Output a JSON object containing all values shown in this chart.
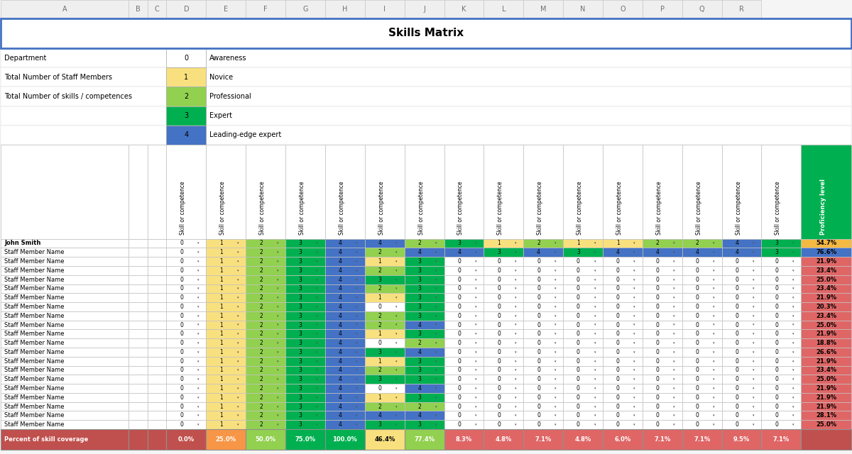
{
  "title": "Skills Matrix",
  "col_letters": [
    "A",
    "B",
    "C",
    "D",
    "E",
    "F",
    "G",
    "H",
    "I",
    "J",
    "K",
    "L",
    "M",
    "N",
    "O",
    "P",
    "Q",
    "R"
  ],
  "legend_items": [
    {
      "value": 0,
      "label": "Awareness",
      "color": "#FFFFFF"
    },
    {
      "value": 1,
      "label": "Novice",
      "color": "#F9E07F"
    },
    {
      "value": 2,
      "label": "Professional",
      "color": "#92D050"
    },
    {
      "value": 3,
      "label": "Expert",
      "color": "#00B050"
    },
    {
      "value": 4,
      "label": "Leading-edge expert",
      "color": "#4472C4"
    }
  ],
  "info_labels": [
    "Department",
    "Total Number of Staff Members",
    "Total Number of skills / competences"
  ],
  "header_text": "Skill or competence",
  "last_col_header": "Proficiency level",
  "num_skill_cols": 16,
  "row_names": [
    "John Smith",
    "Staff Member Name",
    "Staff Member Name",
    "Staff Member Name",
    "Staff Member Name",
    "Staff Member Name",
    "Staff Member Name",
    "Staff Member Name",
    "Staff Member Name",
    "Staff Member Name",
    "Staff Member Name",
    "Staff Member Name",
    "Staff Member Name",
    "Staff Member Name",
    "Staff Member Name",
    "Staff Member Name",
    "Staff Member Name",
    "Staff Member Name",
    "Staff Member Name",
    "Staff Member Name",
    "Staff Member Name"
  ],
  "cell_values": [
    [
      0,
      1,
      2,
      3,
      4,
      4,
      2,
      3,
      1,
      2,
      1,
      1,
      2,
      2,
      4,
      3
    ],
    [
      0,
      1,
      2,
      3,
      4,
      2,
      4,
      4,
      3,
      4,
      3,
      4,
      4,
      4,
      4,
      3
    ],
    [
      0,
      1,
      2,
      3,
      4,
      1,
      3,
      0,
      0,
      0,
      0,
      0,
      0,
      0,
      0,
      0
    ],
    [
      0,
      1,
      2,
      3,
      4,
      2,
      3,
      0,
      0,
      0,
      0,
      0,
      0,
      0,
      0,
      0
    ],
    [
      0,
      1,
      2,
      3,
      4,
      3,
      3,
      0,
      0,
      0,
      0,
      0,
      0,
      0,
      0,
      0
    ],
    [
      0,
      1,
      2,
      3,
      4,
      2,
      3,
      0,
      0,
      0,
      0,
      0,
      0,
      0,
      0,
      0
    ],
    [
      0,
      1,
      2,
      3,
      4,
      1,
      3,
      0,
      0,
      0,
      0,
      0,
      0,
      0,
      0,
      0
    ],
    [
      0,
      1,
      2,
      3,
      4,
      0,
      3,
      0,
      0,
      0,
      0,
      0,
      0,
      0,
      0,
      0
    ],
    [
      0,
      1,
      2,
      3,
      4,
      2,
      3,
      0,
      0,
      0,
      0,
      0,
      0,
      0,
      0,
      0
    ],
    [
      0,
      1,
      2,
      3,
      4,
      2,
      4,
      0,
      0,
      0,
      0,
      0,
      0,
      0,
      0,
      0
    ],
    [
      0,
      1,
      2,
      3,
      4,
      1,
      3,
      0,
      0,
      0,
      0,
      0,
      0,
      0,
      0,
      0
    ],
    [
      0,
      1,
      2,
      3,
      4,
      0,
      2,
      0,
      0,
      0,
      0,
      0,
      0,
      0,
      0,
      0
    ],
    [
      0,
      1,
      2,
      3,
      4,
      3,
      4,
      0,
      0,
      0,
      0,
      0,
      0,
      0,
      0,
      0
    ],
    [
      0,
      1,
      2,
      3,
      4,
      1,
      3,
      0,
      0,
      0,
      0,
      0,
      0,
      0,
      0,
      0
    ],
    [
      0,
      1,
      2,
      3,
      4,
      2,
      3,
      0,
      0,
      0,
      0,
      0,
      0,
      0,
      0,
      0
    ],
    [
      0,
      1,
      2,
      3,
      4,
      3,
      3,
      0,
      0,
      0,
      0,
      0,
      0,
      0,
      0,
      0
    ],
    [
      0,
      1,
      2,
      3,
      4,
      0,
      4,
      0,
      0,
      0,
      0,
      0,
      0,
      0,
      0,
      0
    ],
    [
      0,
      1,
      2,
      3,
      4,
      1,
      3,
      0,
      0,
      0,
      0,
      0,
      0,
      0,
      0,
      0
    ],
    [
      0,
      1,
      2,
      3,
      4,
      2,
      2,
      0,
      0,
      0,
      0,
      0,
      0,
      0,
      0,
      0
    ],
    [
      0,
      1,
      2,
      3,
      4,
      4,
      4,
      0,
      0,
      0,
      0,
      0,
      0,
      0,
      0,
      0
    ],
    [
      0,
      1,
      2,
      3,
      4,
      3,
      3,
      0,
      0,
      0,
      0,
      0,
      0,
      0,
      0,
      0
    ]
  ],
  "proficiency_values": [
    "54.7%",
    "76.6%",
    "21.9%",
    "23.4%",
    "25.0%",
    "23.4%",
    "21.9%",
    "20.3%",
    "23.4%",
    "25.0%",
    "21.9%",
    "18.8%",
    "26.6%",
    "21.9%",
    "23.4%",
    "25.0%",
    "21.9%",
    "21.9%",
    "21.9%",
    "28.1%",
    "25.0%"
  ],
  "coverage_values": [
    "0.0%",
    "25.0%",
    "50.0%",
    "75.0%",
    "100.0%",
    "46.4%",
    "77.4%",
    "8.3%",
    "4.8%",
    "7.1%",
    "4.8%",
    "6.0%",
    "7.1%",
    "7.1%",
    "9.5%",
    "7.1%"
  ],
  "coverage_colors": [
    "#C0504D",
    "#F79646",
    "#92D050",
    "#00B050",
    "#00B050",
    "#F9E07F",
    "#92D050",
    "#E06666",
    "#E06666",
    "#E06666",
    "#E06666",
    "#E06666",
    "#E06666",
    "#E06666",
    "#E06666",
    "#E06666"
  ],
  "coverage_text_colors": [
    "white",
    "white",
    "white",
    "white",
    "white",
    "black",
    "white",
    "white",
    "white",
    "white",
    "white",
    "white",
    "white",
    "white",
    "white",
    "white"
  ],
  "proficiency_colors": [
    "#F4B942",
    "#4472C4",
    "#E06666",
    "#E06666",
    "#E06666",
    "#E06666",
    "#E06666",
    "#E06666",
    "#E06666",
    "#E06666",
    "#E06666",
    "#E06666",
    "#E06666",
    "#E06666",
    "#E06666",
    "#E06666",
    "#E06666",
    "#E06666",
    "#E06666",
    "#E06666",
    "#E06666"
  ],
  "value_to_color": {
    "0": "#FFFFFF",
    "1": "#F9E07F",
    "2": "#92D050",
    "3": "#00B050",
    "4": "#4472C4"
  },
  "bg_color": "#F5F5F5",
  "col_header_bg": "#E8E8E8",
  "title_border_color": "#4472C4",
  "last_col_bg": "#00B050",
  "coverage_row_bg": "#C0504D"
}
